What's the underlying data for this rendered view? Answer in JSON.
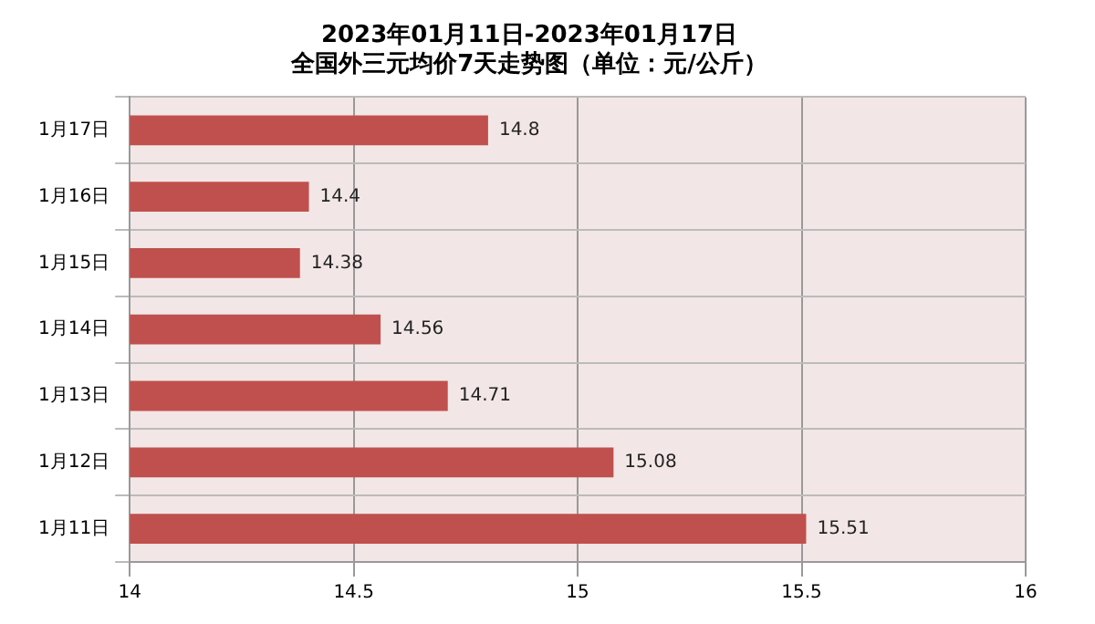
{
  "chart_data": {
    "type": "bar",
    "orientation": "horizontal",
    "title": "2023年01月11日-2023年01月17日",
    "subtitle": "全国外三元均价7天走势图（单位：元/公斤）",
    "categories": [
      "1月17日",
      "1月16日",
      "1月15日",
      "1月14日",
      "1月13日",
      "1月12日",
      "1月11日"
    ],
    "values": [
      14.8,
      14.4,
      14.38,
      14.56,
      14.71,
      15.08,
      15.51
    ],
    "color": "#c0504d",
    "xlim": [
      14,
      16
    ],
    "xticks": [
      14,
      14.5,
      15,
      15.5,
      16
    ],
    "grid": true,
    "data_labels": true,
    "legend": false
  }
}
